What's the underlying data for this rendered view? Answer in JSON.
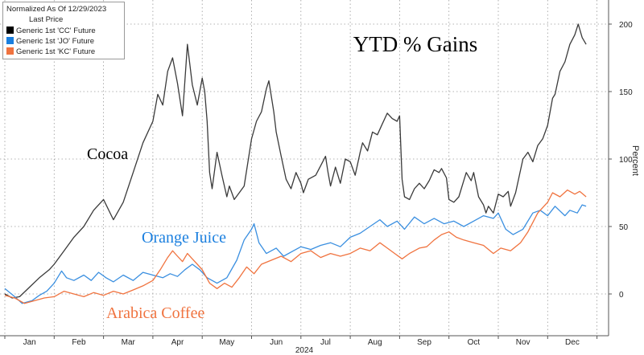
{
  "chart_data": {
    "type": "line",
    "title": "YTD % Gains",
    "subtitle": "Normalized As Of 12/29/2023",
    "legend_title": "Last Price",
    "xlabel": "2024",
    "ylabel": "Percent",
    "x_ticks": [
      "Jan",
      "Feb",
      "Mar",
      "Apr",
      "May",
      "Jun",
      "Jul",
      "Aug",
      "Sep",
      "Oct",
      "Nov",
      "Dec"
    ],
    "y_ticks": [
      0,
      50,
      100,
      150,
      200
    ],
    "ylim": [
      -30,
      215
    ],
    "grid": true,
    "legend_position": "top-left",
    "series": [
      {
        "name": "Generic 1st 'CC' Future",
        "label": "Cocoa",
        "color": "#000000",
        "line_color": "#3a3a3a",
        "values": [
          [
            0,
            0
          ],
          [
            0.15,
            -3
          ],
          [
            0.3,
            -2
          ],
          [
            0.5,
            5
          ],
          [
            0.7,
            12
          ],
          [
            0.9,
            18
          ],
          [
            1.0,
            22
          ],
          [
            1.2,
            32
          ],
          [
            1.4,
            42
          ],
          [
            1.6,
            50
          ],
          [
            1.8,
            62
          ],
          [
            2.0,
            70
          ],
          [
            2.2,
            55
          ],
          [
            2.4,
            68
          ],
          [
            2.6,
            90
          ],
          [
            2.8,
            112
          ],
          [
            3.0,
            128
          ],
          [
            3.1,
            148
          ],
          [
            3.2,
            140
          ],
          [
            3.3,
            165
          ],
          [
            3.4,
            175
          ],
          [
            3.5,
            156
          ],
          [
            3.6,
            132
          ],
          [
            3.7,
            185
          ],
          [
            3.8,
            155
          ],
          [
            3.9,
            140
          ],
          [
            4.0,
            160
          ],
          [
            4.05,
            150
          ],
          [
            4.1,
            128
          ],
          [
            4.15,
            90
          ],
          [
            4.2,
            78
          ],
          [
            4.3,
            105
          ],
          [
            4.4,
            88
          ],
          [
            4.5,
            72
          ],
          [
            4.55,
            80
          ],
          [
            4.65,
            70
          ],
          [
            4.75,
            75
          ],
          [
            4.85,
            80
          ],
          [
            5.0,
            115
          ],
          [
            5.1,
            128
          ],
          [
            5.2,
            135
          ],
          [
            5.3,
            152
          ],
          [
            5.35,
            158
          ],
          [
            5.45,
            135
          ],
          [
            5.5,
            120
          ],
          [
            5.6,
            102
          ],
          [
            5.7,
            85
          ],
          [
            5.8,
            78
          ],
          [
            5.9,
            90
          ],
          [
            6.0,
            82
          ],
          [
            6.05,
            75
          ],
          [
            6.15,
            85
          ],
          [
            6.3,
            88
          ],
          [
            6.4,
            95
          ],
          [
            6.5,
            102
          ],
          [
            6.55,
            90
          ],
          [
            6.6,
            80
          ],
          [
            6.7,
            94
          ],
          [
            6.8,
            82
          ],
          [
            6.9,
            100
          ],
          [
            7.0,
            98
          ],
          [
            7.1,
            88
          ],
          [
            7.2,
            105
          ],
          [
            7.25,
            112
          ],
          [
            7.35,
            106
          ],
          [
            7.45,
            120
          ],
          [
            7.55,
            118
          ],
          [
            7.65,
            126
          ],
          [
            7.75,
            134
          ],
          [
            7.85,
            130
          ],
          [
            7.95,
            128
          ],
          [
            8.0,
            132
          ],
          [
            8.05,
            85
          ],
          [
            8.1,
            72
          ],
          [
            8.2,
            70
          ],
          [
            8.3,
            78
          ],
          [
            8.4,
            82
          ],
          [
            8.5,
            78
          ],
          [
            8.6,
            84
          ],
          [
            8.7,
            92
          ],
          [
            8.8,
            90
          ],
          [
            8.85,
            93
          ],
          [
            8.95,
            86
          ],
          [
            9.0,
            70
          ],
          [
            9.1,
            68
          ],
          [
            9.2,
            72
          ],
          [
            9.3,
            84
          ],
          [
            9.35,
            90
          ],
          [
            9.45,
            84
          ],
          [
            9.5,
            90
          ],
          [
            9.6,
            72
          ],
          [
            9.7,
            66
          ],
          [
            9.75,
            60
          ],
          [
            9.8,
            65
          ],
          [
            9.9,
            60
          ],
          [
            10.0,
            74
          ],
          [
            10.1,
            72
          ],
          [
            10.2,
            76
          ],
          [
            10.25,
            65
          ],
          [
            10.35,
            75
          ],
          [
            10.5,
            100
          ],
          [
            10.6,
            105
          ],
          [
            10.7,
            98
          ],
          [
            10.8,
            110
          ],
          [
            10.9,
            115
          ],
          [
            11.0,
            125
          ],
          [
            11.1,
            145
          ],
          [
            11.15,
            148
          ],
          [
            11.25,
            165
          ],
          [
            11.35,
            172
          ],
          [
            11.45,
            185
          ],
          [
            11.55,
            192
          ],
          [
            11.62,
            200
          ],
          [
            11.7,
            190
          ],
          [
            11.78,
            185
          ]
        ]
      },
      {
        "name": "Generic 1st 'JO' Future",
        "label": "Orange Juice",
        "color": "#1a7fdf",
        "line_color": "#3a8fe0",
        "values": [
          [
            0,
            4
          ],
          [
            0.2,
            -2
          ],
          [
            0.35,
            -7
          ],
          [
            0.55,
            -5
          ],
          [
            0.7,
            -1
          ],
          [
            0.85,
            2
          ],
          [
            1.0,
            8
          ],
          [
            1.15,
            17
          ],
          [
            1.25,
            12
          ],
          [
            1.4,
            10
          ],
          [
            1.6,
            14
          ],
          [
            1.75,
            10
          ],
          [
            1.9,
            16
          ],
          [
            2.05,
            12
          ],
          [
            2.2,
            9
          ],
          [
            2.4,
            14
          ],
          [
            2.6,
            10
          ],
          [
            2.8,
            16
          ],
          [
            3.0,
            14
          ],
          [
            3.2,
            12
          ],
          [
            3.35,
            15
          ],
          [
            3.5,
            13
          ],
          [
            3.65,
            18
          ],
          [
            3.8,
            22
          ],
          [
            3.95,
            18
          ],
          [
            4.1,
            12
          ],
          [
            4.3,
            8
          ],
          [
            4.5,
            12
          ],
          [
            4.7,
            25
          ],
          [
            4.85,
            40
          ],
          [
            5.0,
            48
          ],
          [
            5.05,
            52
          ],
          [
            5.15,
            38
          ],
          [
            5.3,
            30
          ],
          [
            5.5,
            34
          ],
          [
            5.65,
            28
          ],
          [
            5.85,
            32
          ],
          [
            6.0,
            35
          ],
          [
            6.2,
            33
          ],
          [
            6.4,
            36
          ],
          [
            6.6,
            38
          ],
          [
            6.8,
            35
          ],
          [
            7.0,
            42
          ],
          [
            7.2,
            45
          ],
          [
            7.4,
            50
          ],
          [
            7.6,
            55
          ],
          [
            7.75,
            50
          ],
          [
            7.95,
            54
          ],
          [
            8.1,
            48
          ],
          [
            8.3,
            57
          ],
          [
            8.5,
            52
          ],
          [
            8.7,
            56
          ],
          [
            8.9,
            52
          ],
          [
            9.1,
            54
          ],
          [
            9.3,
            50
          ],
          [
            9.5,
            54
          ],
          [
            9.7,
            58
          ],
          [
            9.9,
            56
          ],
          [
            10.0,
            60
          ],
          [
            10.15,
            48
          ],
          [
            10.3,
            44
          ],
          [
            10.5,
            48
          ],
          [
            10.7,
            60
          ],
          [
            10.85,
            62
          ],
          [
            11.0,
            58
          ],
          [
            11.15,
            65
          ],
          [
            11.35,
            58
          ],
          [
            11.45,
            62
          ],
          [
            11.6,
            60
          ],
          [
            11.7,
            66
          ],
          [
            11.78,
            65
          ]
        ]
      },
      {
        "name": "Generic 1st 'KC' Future",
        "label": "Arabica Coffee",
        "color": "#f0733f",
        "line_color": "#f0733f",
        "values": [
          [
            0,
            -1
          ],
          [
            0.2,
            -3
          ],
          [
            0.4,
            -7
          ],
          [
            0.6,
            -5
          ],
          [
            0.8,
            -3
          ],
          [
            1.0,
            -2
          ],
          [
            1.2,
            2
          ],
          [
            1.4,
            0
          ],
          [
            1.6,
            -2
          ],
          [
            1.8,
            1
          ],
          [
            2.0,
            -1
          ],
          [
            2.2,
            2
          ],
          [
            2.4,
            0
          ],
          [
            2.6,
            3
          ],
          [
            2.8,
            6
          ],
          [
            3.0,
            10
          ],
          [
            3.15,
            18
          ],
          [
            3.3,
            27
          ],
          [
            3.4,
            32
          ],
          [
            3.5,
            28
          ],
          [
            3.6,
            24
          ],
          [
            3.7,
            30
          ],
          [
            3.8,
            26
          ],
          [
            3.9,
            22
          ],
          [
            4.0,
            18
          ],
          [
            4.15,
            8
          ],
          [
            4.3,
            4
          ],
          [
            4.45,
            8
          ],
          [
            4.6,
            5
          ],
          [
            4.75,
            12
          ],
          [
            4.9,
            20
          ],
          [
            5.05,
            15
          ],
          [
            5.2,
            22
          ],
          [
            5.4,
            25
          ],
          [
            5.6,
            28
          ],
          [
            5.8,
            24
          ],
          [
            6.0,
            30
          ],
          [
            6.2,
            32
          ],
          [
            6.4,
            27
          ],
          [
            6.6,
            30
          ],
          [
            6.8,
            28
          ],
          [
            7.0,
            30
          ],
          [
            7.2,
            34
          ],
          [
            7.4,
            32
          ],
          [
            7.6,
            38
          ],
          [
            7.75,
            34
          ],
          [
            7.9,
            30
          ],
          [
            8.05,
            26
          ],
          [
            8.2,
            30
          ],
          [
            8.4,
            34
          ],
          [
            8.55,
            35
          ],
          [
            8.7,
            40
          ],
          [
            8.85,
            44
          ],
          [
            9.0,
            46
          ],
          [
            9.15,
            42
          ],
          [
            9.3,
            40
          ],
          [
            9.5,
            38
          ],
          [
            9.7,
            36
          ],
          [
            9.9,
            30
          ],
          [
            10.05,
            34
          ],
          [
            10.25,
            32
          ],
          [
            10.45,
            38
          ],
          [
            10.6,
            46
          ],
          [
            10.8,
            60
          ],
          [
            11.0,
            68
          ],
          [
            11.1,
            75
          ],
          [
            11.25,
            72
          ],
          [
            11.4,
            77
          ],
          [
            11.55,
            74
          ],
          [
            11.65,
            76
          ],
          [
            11.78,
            72
          ]
        ]
      }
    ]
  }
}
